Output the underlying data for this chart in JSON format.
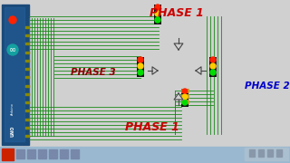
{
  "bg_color": "#d0d0d0",
  "taskbar_color": "#9ab8d0",
  "wire_color": "#1a8a1a",
  "phase1_color": "#cc0000",
  "phase2_color": "#0000cc",
  "phase3_color": "#8b0000",
  "phase1_top_text": "PHASE 1",
  "phase2_text": "PHASE 2",
  "phase3_text": "PHASE 3",
  "phase1_bot_text": "PHASE 1",
  "led_red": "#ff2200",
  "led_yellow": "#ffcc00",
  "led_green": "#00dd00",
  "arrow_color": "#444444",
  "arduino_blue": "#1a4a7a",
  "arduino_light": "#2a6aaa",
  "resistor_color": "#c8a030"
}
